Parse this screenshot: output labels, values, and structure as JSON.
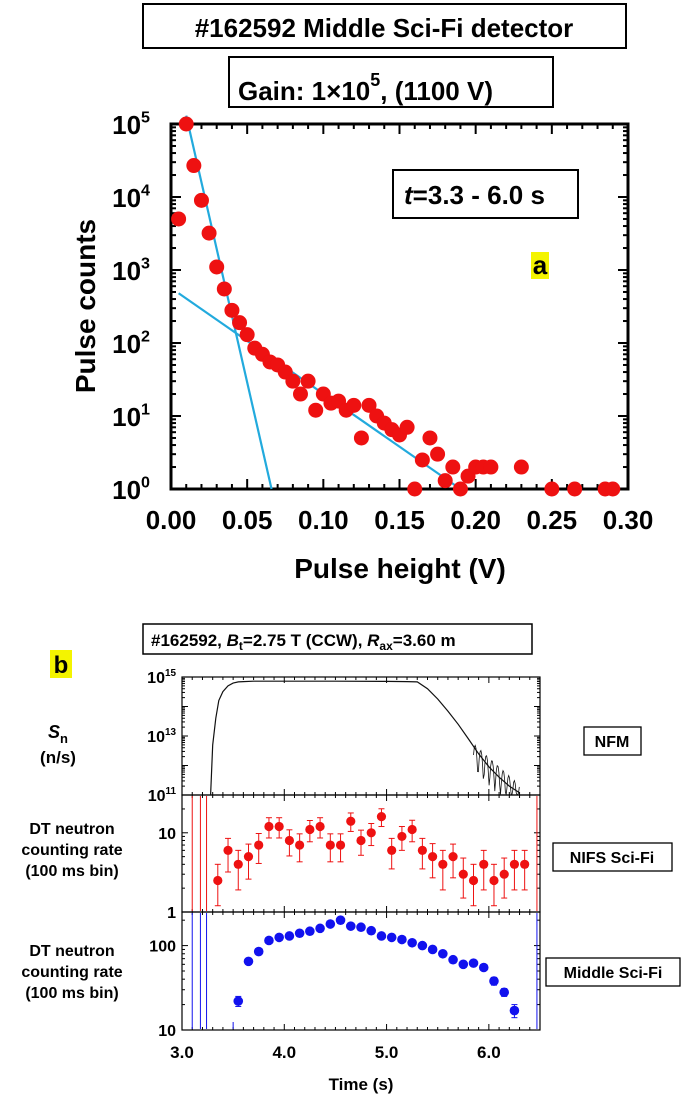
{
  "panel_a": {
    "title": "#162592 Middle Sci-Fi detector",
    "gain_base": "Gain: 1×10",
    "gain_exp": "5",
    "gain_tail": ", (1100 V)",
    "time_var": "t",
    "time_range": "=3.3 - 6.0 s",
    "panel_label": "a"
  },
  "panel_b": {
    "header_shot": "#162592, ",
    "header_bt": "B",
    "header_bt_sub": "t",
    "header_bt_val": "=2.75 T (CCW), ",
    "header_rax": "R",
    "header_rax_sub": "ax",
    "header_rax_val": "=3.60 m",
    "panel_label": "b",
    "sn_label": "S",
    "sn_sub": "n",
    "sn_unit": "(n/s)",
    "dt_label_1": "DT neutron",
    "dt_label_2": "counting rate",
    "dt_label_3": "(100 ms bin)",
    "nfm_label": "NFM",
    "nifs_label": "NIFS Sci-Fi",
    "middle_label": "Middle Sci-Fi"
  },
  "chart_data": [
    {
      "type": "scatter",
      "title": "#162592 Middle Sci-Fi detector",
      "xlabel": "Pulse height (V)",
      "ylabel": "Pulse counts",
      "xlim": [
        0.0,
        0.3
      ],
      "ylim": [
        1,
        100000
      ],
      "yscale": "log",
      "xticks": [
        "0.00",
        "0.05",
        "0.10",
        "0.15",
        "0.20",
        "0.25",
        "0.30"
      ],
      "yticks": [
        {
          "base": "10",
          "exp": "0"
        },
        {
          "base": "10",
          "exp": "1"
        },
        {
          "base": "10",
          "exp": "2"
        },
        {
          "base": "10",
          "exp": "3"
        },
        {
          "base": "10",
          "exp": "4"
        },
        {
          "base": "10",
          "exp": "5"
        }
      ],
      "colors": {
        "points": "#ee1111",
        "fit": "#22aadd"
      },
      "points": {
        "x": [
          0.005,
          0.01,
          0.015,
          0.02,
          0.025,
          0.03,
          0.035,
          0.04,
          0.045,
          0.05,
          0.055,
          0.06,
          0.065,
          0.07,
          0.075,
          0.08,
          0.085,
          0.09,
          0.095,
          0.1,
          0.105,
          0.11,
          0.115,
          0.12,
          0.125,
          0.13,
          0.135,
          0.14,
          0.145,
          0.15,
          0.155,
          0.16,
          0.165,
          0.17,
          0.175,
          0.18,
          0.185,
          0.19,
          0.195,
          0.2,
          0.205,
          0.21,
          0.23,
          0.25,
          0.265,
          0.285,
          0.29
        ],
        "y": [
          5000,
          100000,
          27000,
          9000,
          3200,
          1100,
          550,
          280,
          190,
          130,
          85,
          70,
          55,
          50,
          40,
          30,
          20,
          30,
          12,
          20,
          15,
          16,
          12,
          14,
          5,
          14,
          10,
          8,
          6.5,
          5.5,
          7,
          1,
          2.5,
          5,
          3,
          1.3,
          2,
          1,
          1.5,
          2,
          2,
          2,
          2,
          1,
          1,
          1,
          1
        ]
      },
      "fit_lines": [
        {
          "name": "steep",
          "x": [
            0.01,
            0.066
          ],
          "y": [
            130000,
            1
          ]
        },
        {
          "name": "shallow",
          "x": [
            0.005,
            0.19
          ],
          "y": [
            480,
            1
          ]
        }
      ]
    },
    {
      "type": "line",
      "panel": "NFM",
      "xlabel": "Time (s)",
      "ylabel": "Sn (n/s)",
      "xlim": [
        3.0,
        6.5
      ],
      "ylim": [
        100000000000,
        1000000000000000
      ],
      "yscale": "log",
      "yticks": [
        {
          "base": "10",
          "exp": "15"
        },
        {
          "base": "10",
          "exp": "13"
        },
        {
          "base": "10",
          "exp": "11"
        }
      ],
      "color": "#111111",
      "x": [
        3.28,
        3.3,
        3.33,
        3.36,
        3.4,
        3.45,
        3.5,
        3.55,
        3.6,
        3.7,
        3.8,
        4.0,
        4.5,
        5.0,
        5.2,
        5.3,
        5.4,
        5.5,
        5.6,
        5.7,
        5.8,
        5.9,
        6.0,
        6.1,
        6.2,
        6.3
      ],
      "y": [
        100000000000,
        5000000000000,
        40000000000000,
        160000000000000,
        320000000000000,
        500000000000000,
        620000000000000,
        680000000000000,
        700000000000000,
        720000000000000,
        720000000000000,
        720000000000000,
        720000000000000,
        710000000000000,
        700000000000000,
        680000000000000,
        400000000000000,
        180000000000000,
        70000000000000,
        25000000000000,
        8000000000000,
        2500000000000,
        900000000000,
        400000000000,
        200000000000,
        120000000000
      ]
    },
    {
      "type": "scatter",
      "panel": "NIFS Sci-Fi",
      "xlabel": "Time (s)",
      "ylabel": "DT neutron counting rate (100 ms bin)",
      "xlim": [
        3.0,
        6.5
      ],
      "ylim": [
        1,
        30
      ],
      "yscale": "log",
      "yticks": [
        "1",
        "10"
      ],
      "color": "#ee1111",
      "x": [
        3.35,
        3.45,
        3.55,
        3.65,
        3.75,
        3.85,
        3.95,
        4.05,
        4.15,
        4.25,
        4.35,
        4.45,
        4.55,
        4.65,
        4.75,
        4.85,
        4.95,
        5.05,
        5.15,
        5.25,
        5.35,
        5.45,
        5.55,
        5.65,
        5.75,
        5.85,
        5.95,
        6.05,
        6.15,
        6.25,
        6.35
      ],
      "y": [
        2.5,
        6,
        4,
        5,
        7,
        12,
        12,
        8,
        7,
        11,
        12,
        7,
        7,
        14,
        8,
        10,
        16,
        6,
        9,
        11,
        6,
        5,
        4,
        5,
        3,
        2.5,
        4,
        2.5,
        3,
        4,
        4
      ],
      "err_low": [
        1.3,
        2.8,
        2.1,
        2.4,
        2.9,
        3.4,
        3.4,
        2.9,
        2.7,
        3.3,
        3.4,
        2.7,
        2.7,
        3.6,
        2.8,
        3.1,
        4.0,
        2.5,
        3.0,
        3.3,
        2.5,
        2.3,
        2.1,
        2.3,
        1.5,
        1.3,
        2.1,
        1.3,
        1.5,
        2.1,
        2.1
      ],
      "err_high": [
        1.5,
        2.5,
        2.0,
        2.2,
        2.8,
        3.5,
        3.5,
        2.9,
        2.7,
        3.3,
        3.5,
        2.7,
        2.7,
        3.8,
        2.8,
        3.1,
        4.1,
        2.5,
        3.0,
        3.4,
        2.5,
        2.3,
        2.0,
        2.2,
        1.8,
        1.5,
        2.0,
        1.5,
        1.8,
        2.0,
        2.0
      ],
      "vlines": [
        3.1,
        3.18,
        3.24,
        6.47
      ]
    },
    {
      "type": "scatter",
      "panel": "Middle Sci-Fi",
      "xlabel": "Time (s)",
      "ylabel": "DT neutron counting rate (100 ms bin)",
      "xlim": [
        3.0,
        6.5
      ],
      "ylim": [
        10,
        250
      ],
      "yscale": "log",
      "xticks": [
        "3.0",
        "4.0",
        "5.0",
        "6.0"
      ],
      "yticks": [
        "10",
        "100"
      ],
      "color": "#1111ee",
      "x": [
        3.55,
        3.65,
        3.75,
        3.85,
        3.95,
        4.05,
        4.15,
        4.25,
        4.35,
        4.45,
        4.55,
        4.65,
        4.75,
        4.85,
        4.95,
        5.05,
        5.15,
        5.25,
        5.35,
        5.45,
        5.55,
        5.65,
        5.75,
        5.85,
        5.95,
        6.05,
        6.15,
        6.25
      ],
      "y": [
        22,
        65,
        85,
        115,
        125,
        130,
        140,
        148,
        160,
        180,
        200,
        170,
        165,
        150,
        130,
        125,
        118,
        108,
        100,
        90,
        80,
        68,
        60,
        62,
        55,
        38,
        28,
        17
      ],
      "err_low": [
        3,
        5,
        5,
        6,
        6,
        7,
        7,
        7,
        8,
        8,
        9,
        8,
        8,
        7,
        7,
        7,
        6,
        6,
        6,
        6,
        5,
        5,
        5,
        5,
        4,
        4,
        3,
        3
      ],
      "err_high": [
        3,
        5,
        5,
        6,
        6,
        7,
        7,
        7,
        8,
        8,
        9,
        8,
        8,
        7,
        7,
        7,
        6,
        6,
        6,
        6,
        5,
        5,
        5,
        5,
        4,
        4,
        3,
        3
      ],
      "vlines": [
        3.1,
        3.18,
        3.24,
        6.47
      ]
    }
  ]
}
